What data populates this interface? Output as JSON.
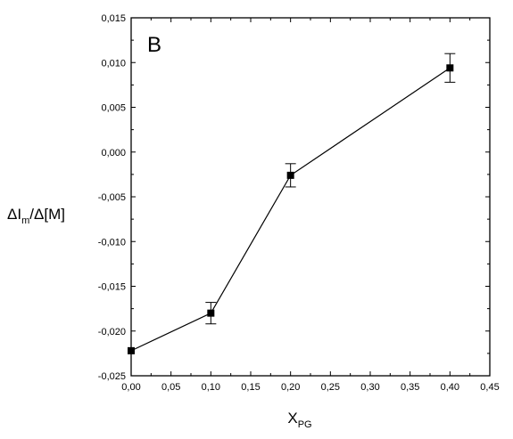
{
  "chart_data": {
    "type": "line",
    "panel_label": "B",
    "xlabel": {
      "main": "X",
      "sub": "PG"
    },
    "ylabel": {
      "part1": "ΔI",
      "sub": "m",
      "part2": "/Δ[M]"
    },
    "xlim": [
      0.0,
      0.45
    ],
    "ylim": [
      -0.025,
      0.015
    ],
    "x_ticks": [
      {
        "value": 0.0,
        "label": "0,00"
      },
      {
        "value": 0.05,
        "label": "0,05"
      },
      {
        "value": 0.1,
        "label": "0,10"
      },
      {
        "value": 0.15,
        "label": "0,15"
      },
      {
        "value": 0.2,
        "label": "0,20"
      },
      {
        "value": 0.25,
        "label": "0,25"
      },
      {
        "value": 0.3,
        "label": "0,30"
      },
      {
        "value": 0.35,
        "label": "0,35"
      },
      {
        "value": 0.4,
        "label": "0,40"
      },
      {
        "value": 0.45,
        "label": "0,45"
      }
    ],
    "y_ticks": [
      {
        "value": 0.015,
        "label": "0,015"
      },
      {
        "value": 0.01,
        "label": "0,010"
      },
      {
        "value": 0.005,
        "label": "0,005"
      },
      {
        "value": 0.0,
        "label": "0,000"
      },
      {
        "value": -0.005,
        "label": "-0,005"
      },
      {
        "value": -0.01,
        "label": "-0,010"
      },
      {
        "value": -0.015,
        "label": "-0,015"
      },
      {
        "value": -0.02,
        "label": "-0,020"
      },
      {
        "value": -0.025,
        "label": "-0,025"
      }
    ],
    "series": [
      {
        "marker": "square",
        "color": "#000000",
        "points": [
          {
            "x": 0.0,
            "y": -0.0222,
            "err": 0.0
          },
          {
            "x": 0.1,
            "y": -0.018,
            "err": 0.0012
          },
          {
            "x": 0.2,
            "y": -0.0026,
            "err": 0.0013
          },
          {
            "x": 0.4,
            "y": 0.0094,
            "err": 0.0016
          }
        ]
      }
    ],
    "grid": false,
    "legend": "none"
  }
}
